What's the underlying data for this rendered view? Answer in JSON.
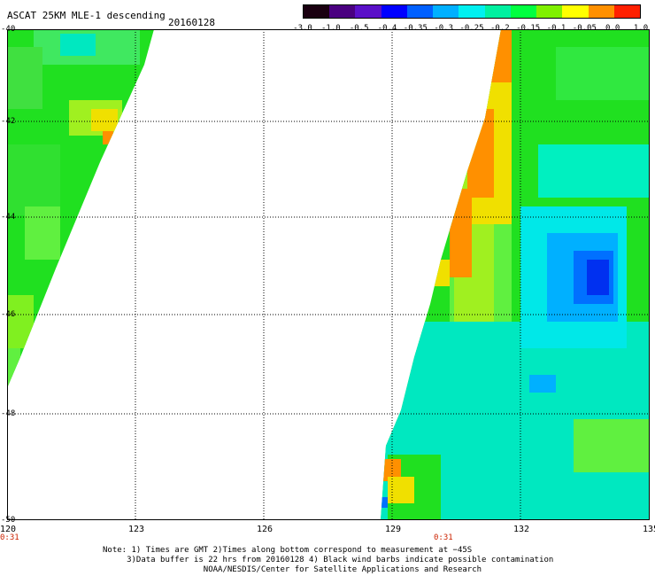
{
  "header": {
    "title": "ASCAT 25KM MLE-1 descending",
    "date": "20160128"
  },
  "colorbar": {
    "labels": [
      "-3.0",
      "-1.0",
      "-0.5",
      "-0.4",
      "-0.35",
      "-0.3",
      "-0.25",
      "-0.2",
      "-0.15",
      "-0.1",
      "-0.05",
      "0.0",
      "1.0"
    ],
    "colors": [
      "#1a0010",
      "#4a0080",
      "#5a10c8",
      "#0000ff",
      "#0060ff",
      "#00b0ff",
      "#00f0f0",
      "#00f0a0",
      "#00ff40",
      "#80f000",
      "#ffff00",
      "#ff9000",
      "#ff2000"
    ]
  },
  "map": {
    "lat_labels": [
      "-40",
      "-42",
      "-44",
      "-46",
      "-48",
      "-50"
    ],
    "lon_labels": [
      "120",
      "123",
      "126",
      "129",
      "132",
      "135"
    ],
    "time_labels": [
      "0:31",
      "0:31"
    ],
    "colors": {
      "green": "#20e020",
      "light_green": "#60f040",
      "cyan": "#00f0c0",
      "aqua": "#00e8e8",
      "yellow": "#f0f000",
      "orange": "#ff9000",
      "blue": "#0070ff",
      "deep_blue": "#0030f0"
    }
  },
  "note": {
    "line1": "Note: 1) Times are GMT 2)Times along bottom correspond to measurement at −45S",
    "line2": "3)Data buffer is 22 hrs from 20160128 4) Black wind barbs indicate possible contamination",
    "line3": "NOAA/NESDIS/Center for Satellite Applications and Research"
  }
}
